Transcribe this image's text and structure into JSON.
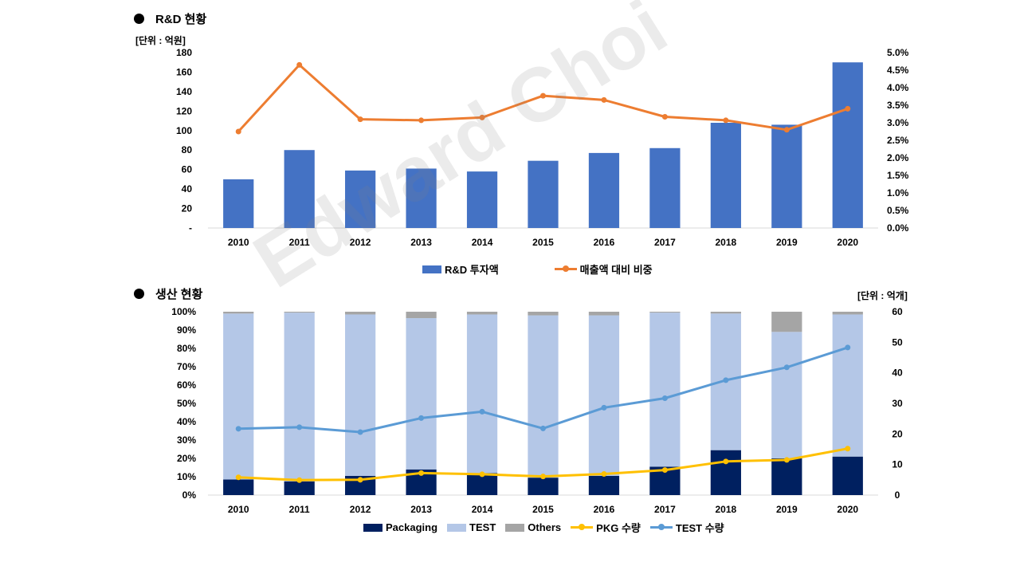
{
  "rd_section": {
    "title": "R&D 현황",
    "unit": "[단위 : 억원]",
    "legend": {
      "bar": "R&D 투자액",
      "line": "매출액 대비 비중"
    }
  },
  "production_section": {
    "title": "생산 현황",
    "unit": "[단위 : 억개]",
    "legend": {
      "packaging": "Packaging",
      "test": "TEST",
      "others": "Others",
      "pkg_qty": "PKG 수량",
      "test_qty": "TEST 수량"
    }
  },
  "watermark": "Edward Choi",
  "colors": {
    "bar_blue": "#4472C4",
    "line_orange": "#ED7D31",
    "packaging": "#002060",
    "test": "#B4C7E7",
    "others": "#A5A5A5",
    "pkg_line": "#FFC000",
    "test_line": "#5B9BD5"
  },
  "chart_data": [
    {
      "type": "bar",
      "categories": [
        "2010",
        "2011",
        "2012",
        "2013",
        "2014",
        "2015",
        "2016",
        "2017",
        "2018",
        "2019",
        "2020"
      ],
      "series": [
        {
          "name": "R&D 투자액",
          "type": "bar",
          "axis": "left",
          "values": [
            50,
            80,
            59,
            61,
            58,
            69,
            77,
            82,
            108,
            106,
            170
          ]
        },
        {
          "name": "매출액 대비 비중",
          "type": "line",
          "axis": "right",
          "values": [
            2.75,
            4.65,
            3.1,
            3.07,
            3.15,
            3.77,
            3.65,
            3.17,
            3.07,
            2.8,
            3.4
          ]
        }
      ],
      "ylim": [
        0,
        180
      ],
      "yticks": [
        "-",
        "20",
        "40",
        "60",
        "80",
        "100",
        "120",
        "140",
        "160",
        "180"
      ],
      "y2lim": [
        0,
        5
      ],
      "y2ticks": [
        "0.0%",
        "0.5%",
        "1.0%",
        "1.5%",
        "2.0%",
        "2.5%",
        "3.0%",
        "3.5%",
        "4.0%",
        "4.5%",
        "5.0%"
      ],
      "legend_position": "bottom"
    },
    {
      "type": "bar",
      "stacked": true,
      "categories": [
        "2010",
        "2011",
        "2012",
        "2013",
        "2014",
        "2015",
        "2016",
        "2017",
        "2018",
        "2019",
        "2020"
      ],
      "series": [
        {
          "name": "Packaging",
          "type": "bar",
          "axis": "left",
          "values": [
            8.5,
            7.5,
            10.5,
            14,
            12,
            9.5,
            10.5,
            15.5,
            24.5,
            20,
            21
          ]
        },
        {
          "name": "TEST",
          "type": "bar",
          "axis": "left",
          "values": [
            90.5,
            92,
            88,
            82.5,
            86.5,
            88.5,
            87.5,
            84,
            74.5,
            69,
            77.5
          ]
        },
        {
          "name": "Others",
          "type": "bar",
          "axis": "left",
          "values": [
            1,
            0.5,
            1.5,
            3.5,
            1.5,
            2,
            2,
            0.5,
            1,
            11,
            1.5
          ]
        },
        {
          "name": "PKG 수량",
          "type": "line",
          "axis": "right",
          "values": [
            5.8,
            4.9,
            5.0,
            7.2,
            6.8,
            6.1,
            6.9,
            8.2,
            11.0,
            11.5,
            15.2
          ]
        },
        {
          "name": "TEST 수량",
          "type": "line",
          "axis": "right",
          "values": [
            21.7,
            22.2,
            20.6,
            25.2,
            27.3,
            21.8,
            28.6,
            31.7,
            37.6,
            41.8,
            48.3
          ]
        }
      ],
      "ylim": [
        0,
        100
      ],
      "yticks": [
        "0%",
        "10%",
        "20%",
        "30%",
        "40%",
        "50%",
        "60%",
        "70%",
        "80%",
        "90%",
        "100%"
      ],
      "y2lim": [
        0,
        60
      ],
      "y2ticks": [
        "0",
        "10",
        "20",
        "30",
        "40",
        "50",
        "60"
      ],
      "legend_position": "bottom"
    }
  ]
}
